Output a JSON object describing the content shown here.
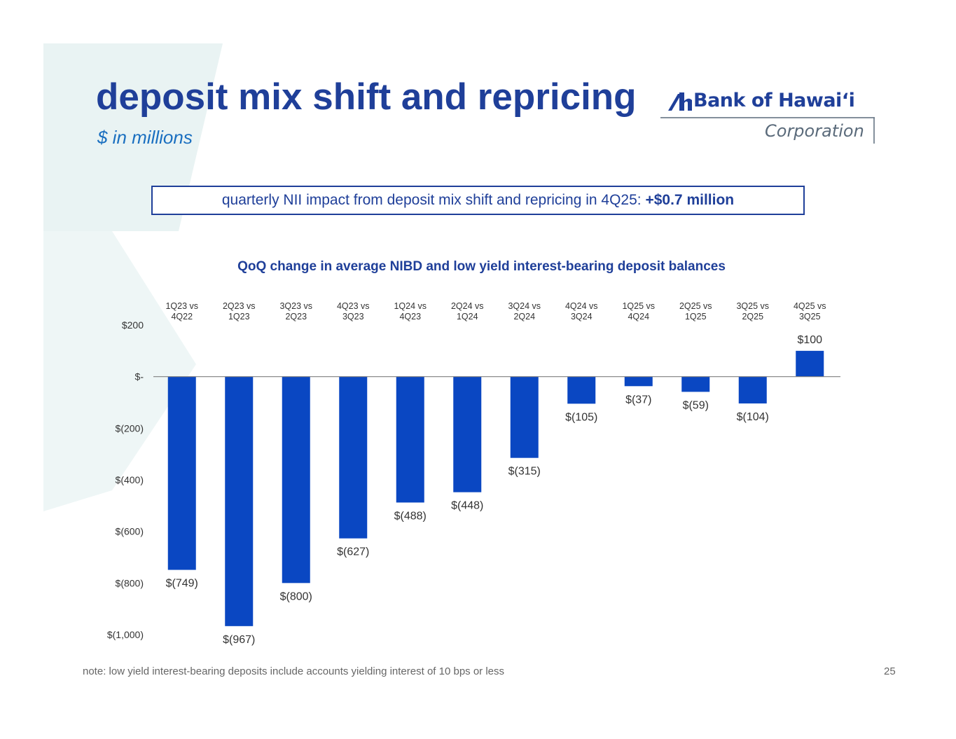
{
  "slide": {
    "title": "deposit mix shift and repricing",
    "subtitle": "$ in millions",
    "callout_text": "quarterly NII impact from deposit mix shift and repricing in 4Q25: ",
    "callout_highlight": "+$0.7 million",
    "note": "note: low yield interest-bearing deposits include accounts yielding interest of 10 bps or less",
    "page_number": "25"
  },
  "logo": {
    "name": "Bank of Hawaiʻi",
    "subtitle": "Corporation"
  },
  "colors": {
    "bar": "#0a47c2",
    "title": "#1f3f99",
    "accent": "#1a6fc0",
    "background_shape": "#e9f3f3"
  },
  "chart_data": {
    "type": "bar",
    "title": "QoQ change in average NIBD and low yield interest-bearing deposit balances",
    "categories": [
      [
        "1Q23 vs",
        "4Q22"
      ],
      [
        "2Q23 vs",
        "1Q23"
      ],
      [
        "3Q23 vs",
        "2Q23"
      ],
      [
        "4Q23 vs",
        "3Q23"
      ],
      [
        "1Q24 vs",
        "4Q23"
      ],
      [
        "2Q24 vs",
        "1Q24"
      ],
      [
        "3Q24 vs",
        "2Q24"
      ],
      [
        "4Q24 vs",
        "3Q24"
      ],
      [
        "1Q25 vs",
        "4Q24"
      ],
      [
        "2Q25 vs",
        "1Q25"
      ],
      [
        "3Q25 vs",
        "2Q25"
      ],
      [
        "4Q25 vs",
        "3Q25"
      ]
    ],
    "values": [
      -749,
      -967,
      -800,
      -627,
      -488,
      -448,
      -315,
      -105,
      -37,
      -59,
      -104,
      100
    ],
    "data_labels": [
      "$(749)",
      "$(967)",
      "$(800)",
      "$(627)",
      "$(488)",
      "$(448)",
      "$(315)",
      "$(105)",
      "$(37)",
      "$(59)",
      "$(104)",
      "$100"
    ],
    "ylim": [
      -1000,
      200
    ],
    "yticks": [
      200,
      0,
      -200,
      -400,
      -600,
      -800,
      -1000
    ],
    "ytick_labels": [
      "$200",
      "$-",
      "$(200)",
      "$(400)",
      "$(600)",
      "$(800)",
      "$(1,000)"
    ],
    "xlabel": "",
    "ylabel": "",
    "legend": "none",
    "grid": false
  }
}
